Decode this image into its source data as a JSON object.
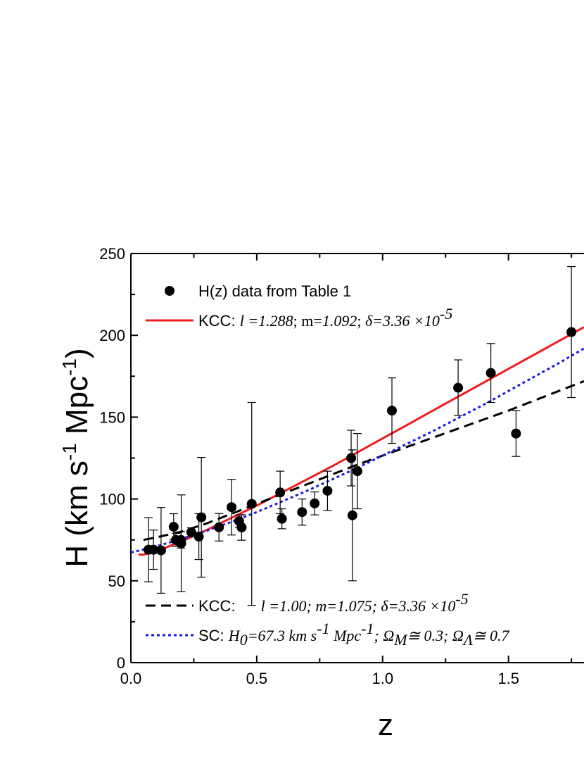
{
  "chart_data": {
    "type": "scatter",
    "xlabel": "z",
    "ylabel": "H (km s-1 Mpc-1)",
    "ylabel_parts": {
      "pre": "H (km s",
      "sup1": "-1",
      "mid": " Mpc",
      "sup2": "-1",
      "post": ")"
    },
    "xlim": [
      0.0,
      1.8
    ],
    "ylim": [
      0,
      250
    ],
    "x_ticks": [
      "0.0",
      "0.5",
      "1.0",
      "1.5"
    ],
    "y_ticks": [
      "0",
      "50",
      "100",
      "150",
      "200",
      "250"
    ],
    "grid": false,
    "legend": {
      "placement": "inside-top-left and bottom",
      "data_label": "H(z) data from Table 1",
      "kcc1": {
        "prefix": "KCC: ",
        "l_sym": "l",
        "l_val": " =1.288",
        "sep1": "; m=",
        "m_val": "1.092",
        "sep2": "; ",
        "delta_sym": "δ",
        "delta_val": "=3.36 ×10",
        "delta_exp": "-5"
      },
      "kcc2": {
        "prefix": "KCC:",
        "body": "l =1.00; m=1.075; ",
        "delta_sym": "δ",
        "delta_val": "=3.36 ×10",
        "delta_exp": "-5"
      },
      "sc": {
        "prefix": "SC: ",
        "h0": "H",
        "h0_sub": "0",
        "h0_val": "=67.3 km s",
        "s_exp": "-1",
        "mpc": " Mpc",
        "mpc_exp": "-1",
        "om": "; Ω",
        "om_sub": "M",
        "om_val": "≅ 0.3; Ω",
        "ol_sub": "Λ",
        "ol_val": "≅ 0.7"
      }
    },
    "series": [
      {
        "name": "H(z) data from Table 1",
        "kind": "points",
        "color": "#000000",
        "points": [
          {
            "x": 0.07,
            "y": 69,
            "err": 19.6
          },
          {
            "x": 0.09,
            "y": 69,
            "err": 12
          },
          {
            "x": 0.12,
            "y": 68.6,
            "err": 26.2
          },
          {
            "x": 0.17,
            "y": 83,
            "err": 8
          },
          {
            "x": 0.179,
            "y": 75,
            "err": 4
          },
          {
            "x": 0.199,
            "y": 75,
            "err": 5
          },
          {
            "x": 0.2,
            "y": 72.9,
            "err": 29.6
          },
          {
            "x": 0.24,
            "y": 79.7,
            "err": 2.7
          },
          {
            "x": 0.27,
            "y": 77,
            "err": 14
          },
          {
            "x": 0.28,
            "y": 88.8,
            "err": 36.6
          },
          {
            "x": 0.35,
            "y": 82.7,
            "err": 8.4
          },
          {
            "x": 0.4,
            "y": 95,
            "err": 17
          },
          {
            "x": 0.43,
            "y": 86.5,
            "err": 3.7
          },
          {
            "x": 0.44,
            "y": 82.6,
            "err": 7.8
          },
          {
            "x": 0.48,
            "y": 97,
            "err": 62
          },
          {
            "x": 0.593,
            "y": 104,
            "err": 13
          },
          {
            "x": 0.6,
            "y": 87.9,
            "err": 6.1
          },
          {
            "x": 0.68,
            "y": 92,
            "err": 8
          },
          {
            "x": 0.73,
            "y": 97.3,
            "err": 7
          },
          {
            "x": 0.781,
            "y": 105,
            "err": 12
          },
          {
            "x": 0.875,
            "y": 125,
            "err": 17
          },
          {
            "x": 0.88,
            "y": 90,
            "err": 40
          },
          {
            "x": 0.9,
            "y": 117,
            "err": 23
          },
          {
            "x": 1.037,
            "y": 154,
            "err": 20
          },
          {
            "x": 1.3,
            "y": 168,
            "err": 17
          },
          {
            "x": 1.43,
            "y": 177,
            "err": 18
          },
          {
            "x": 1.53,
            "y": 140,
            "err": 14
          },
          {
            "x": 1.75,
            "y": 202,
            "err": 40
          }
        ]
      },
      {
        "name": "KCC: l =1.288; m=1.092; δ=3.36 ×10-5",
        "kind": "line",
        "color": "#ee1c1c",
        "style": "solid",
        "x": [
          0.03,
          0.05,
          0.1,
          0.2,
          0.3,
          0.4,
          0.5,
          0.6,
          0.7,
          0.8,
          0.9,
          1.0,
          1.1,
          1.2,
          1.3,
          1.4,
          1.5,
          1.6,
          1.7,
          1.8
        ],
        "y": [
          66,
          66,
          68,
          74,
          81,
          88.5,
          96,
          104,
          112,
          120,
          128.5,
          137,
          145.5,
          154,
          162.5,
          171,
          179.5,
          188,
          196.5,
          205
        ]
      },
      {
        "name": "KCC: l =1.00; m=1.075; δ=3.36 ×10-5",
        "kind": "line",
        "color": "#000000",
        "style": "dash",
        "x": [
          0.05,
          0.1,
          0.2,
          0.3,
          0.4,
          0.5,
          0.6,
          0.7,
          0.8,
          0.9,
          1.0,
          1.1,
          1.2,
          1.3,
          1.4,
          1.5,
          1.6,
          1.7,
          1.8
        ],
        "y": [
          75,
          76.5,
          80,
          85,
          91,
          97,
          103,
          109,
          115,
          121,
          126.5,
          132,
          137.5,
          143,
          148.5,
          154,
          160,
          166,
          172
        ]
      },
      {
        "name": "SC: H0=67.3 km s-1 Mpc-1; ΩM≅ 0.3; ΩΛ≅ 0.7",
        "kind": "line",
        "color": "#1a1ae0",
        "style": "dot",
        "x": [
          0.0,
          0.1,
          0.2,
          0.3,
          0.4,
          0.5,
          0.6,
          0.7,
          0.8,
          0.9,
          1.0,
          1.1,
          1.2,
          1.3,
          1.4,
          1.5,
          1.6,
          1.7,
          1.8
        ],
        "y": [
          67.3,
          71,
          75.5,
          80.5,
          86,
          92,
          98.5,
          105,
          112,
          119,
          126.5,
          134,
          141.5,
          149.5,
          157.5,
          166,
          174.5,
          183,
          192
        ]
      }
    ]
  }
}
